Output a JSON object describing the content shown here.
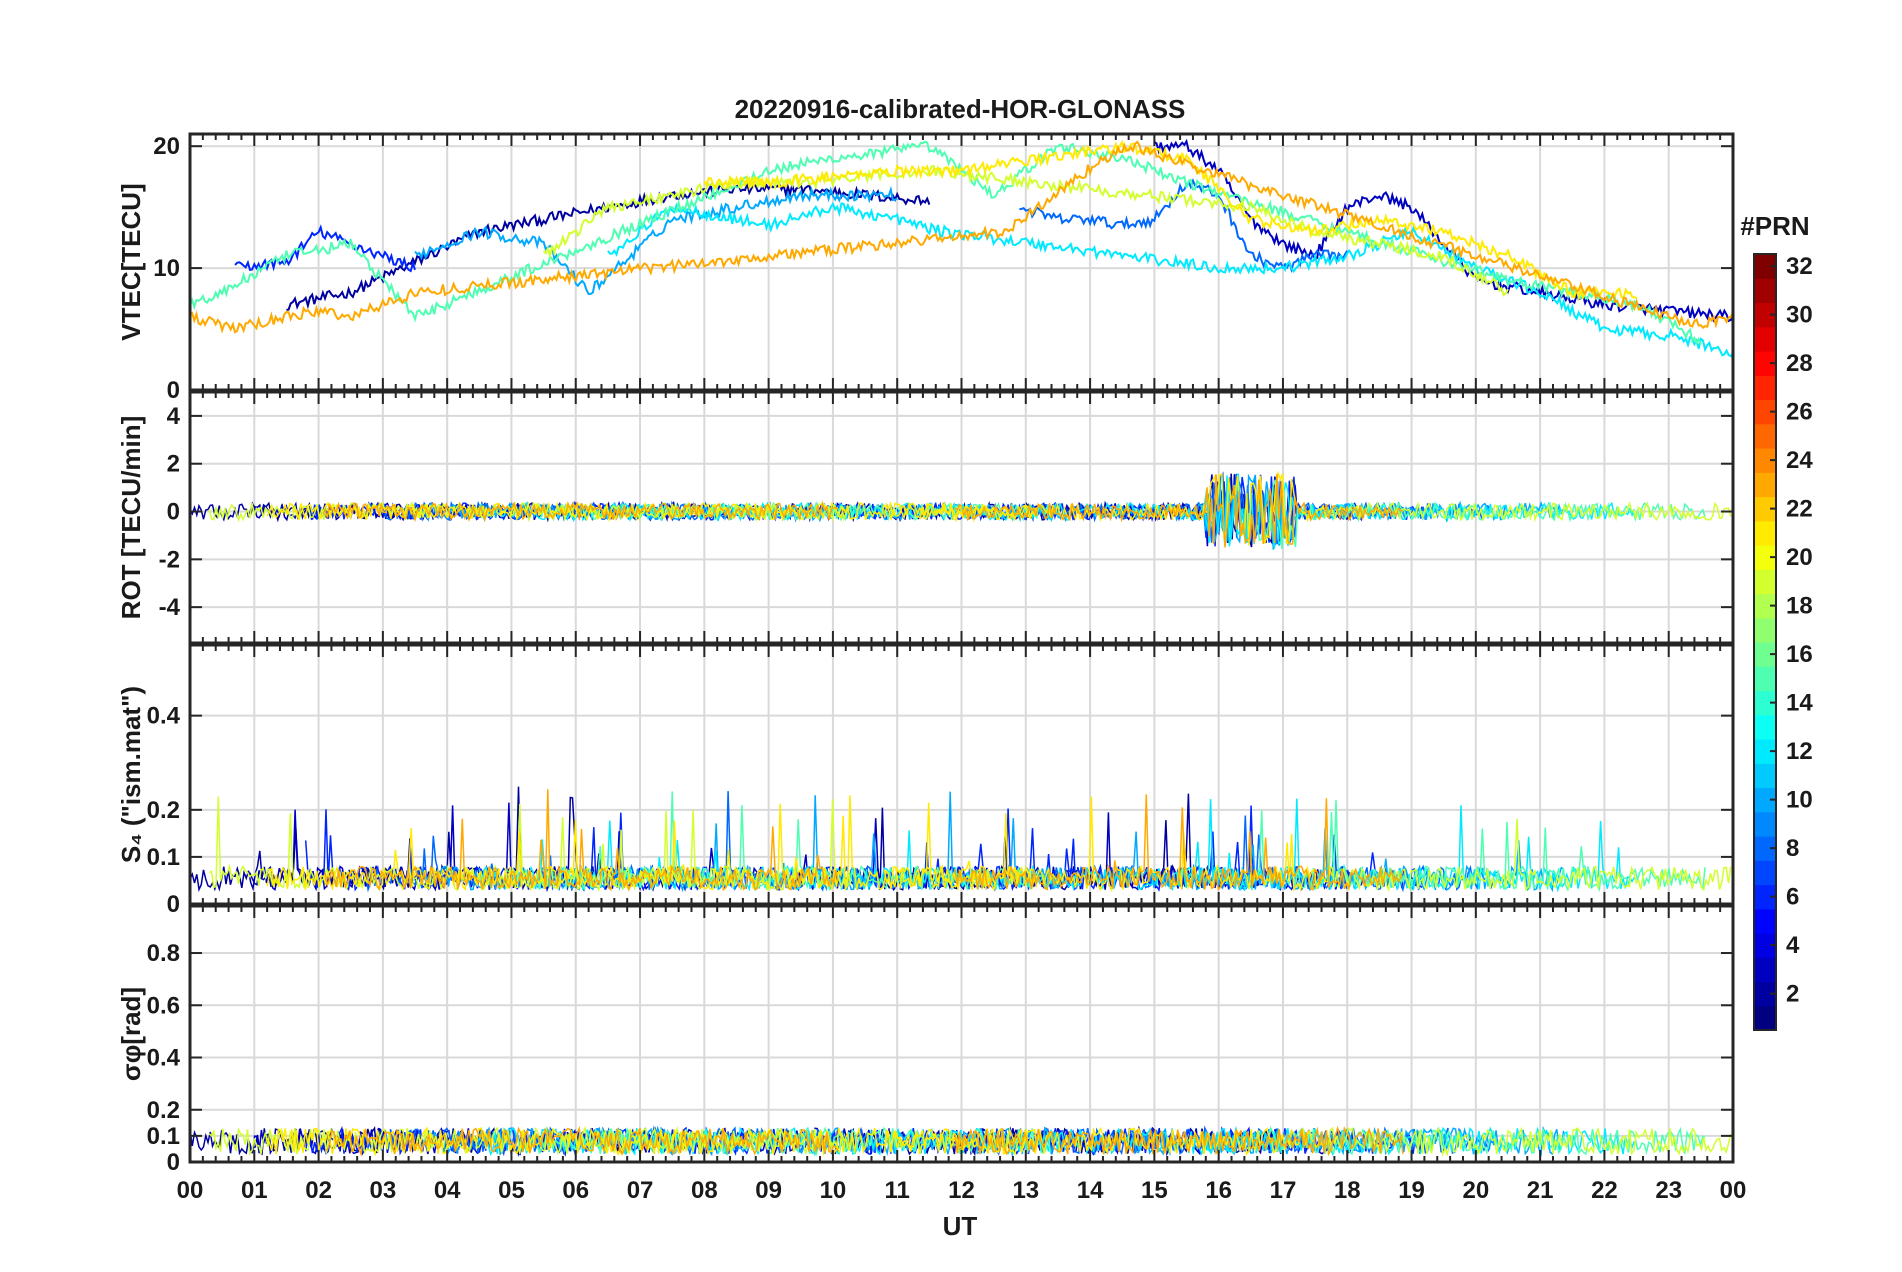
{
  "chart_data": {
    "type": "line",
    "title": "20220916-calibrated-HOR-GLONASS",
    "xlabel": "UT",
    "x_ticks": [
      "00",
      "01",
      "02",
      "03",
      "04",
      "05",
      "06",
      "07",
      "08",
      "09",
      "10",
      "11",
      "12",
      "13",
      "14",
      "15",
      "16",
      "17",
      "18",
      "19",
      "20",
      "21",
      "22",
      "23",
      "00"
    ],
    "xlim": [
      0,
      24
    ],
    "colorbar": {
      "title": "#PRN",
      "range": [
        1,
        32
      ],
      "tick_labels": [
        "2",
        "4",
        "6",
        "8",
        "10",
        "12",
        "14",
        "16",
        "18",
        "20",
        "22",
        "24",
        "26",
        "28",
        "30",
        "32"
      ],
      "colormap": "jet",
      "colors": [
        "#00007f",
        "#0000ff",
        "#007fff",
        "#00ffff",
        "#7fff7f",
        "#ffff00",
        "#ff7f00",
        "#ff0000",
        "#7f0000"
      ]
    },
    "panels": [
      {
        "id": "vtec",
        "ylabel": "VTEC[TECU]",
        "ylim": [
          0,
          21
        ],
        "y_ticks": [
          0,
          10,
          20
        ],
        "y_tick_labels": [
          "0",
          "10",
          "20"
        ],
        "series": [
          {
            "prn": 2,
            "x": [
              1.5,
              2.5,
              3.5,
              4.5,
              5.5,
              6.5,
              7.5,
              8.5,
              9.5,
              10.5,
              11.5
            ],
            "y": [
              7,
              8,
              10.5,
              13,
              14,
              15,
              16,
              16.5,
              16.5,
              16,
              15.5
            ]
          },
          {
            "prn": 3,
            "x": [
              15.0,
              15.5,
              16.0,
              16.5,
              17.0,
              17.5,
              18.0,
              18.5,
              19.0,
              19.5,
              20.0,
              21.0,
              22.0,
              23.0,
              24.0
            ],
            "y": [
              20,
              20,
              18,
              14,
              12,
              11,
              15,
              16,
              15,
              12,
              9,
              8,
              7,
              6.5,
              6
            ]
          },
          {
            "prn": 6,
            "x": [
              0.7,
              1.5,
              2.0,
              2.5,
              3.0,
              3.5
            ],
            "y": [
              10,
              10.5,
              13,
              12,
              11,
              10
            ]
          },
          {
            "prn": 8,
            "x": [
              12.9,
              13.5,
              14.0,
              14.5,
              15.0,
              15.5,
              16.0,
              16.5,
              17.0,
              17.5,
              18.0
            ],
            "y": [
              15,
              14,
              14,
              13.5,
              14,
              17,
              16,
              11,
              10,
              11,
              11
            ]
          },
          {
            "prn": 10,
            "x": [
              3.5,
              4.5,
              5.5,
              6.2,
              7.5,
              8.5,
              9.5,
              10.5,
              11.0
            ],
            "y": [
              11,
              13,
              12,
              8,
              14,
              15,
              16,
              16,
              16
            ]
          },
          {
            "prn": 12,
            "x": [
              6.5,
              7.5,
              8.5,
              9.0,
              10.0,
              11.0,
              11.7,
              16.0,
              17.0,
              18.0,
              19.0,
              20.0,
              21.0,
              22.0,
              23.0,
              24.0
            ],
            "y": [
              11,
              15,
              14,
              13.5,
              15,
              14,
              13,
              10,
              10,
              11,
              13,
              10,
              8,
              5,
              4.5,
              3
            ]
          },
          {
            "prn": 15,
            "x": [
              0,
              0.5,
              1.5,
              2.5,
              3.5,
              9.0,
              10.0,
              11.5,
              12.5,
              13.5,
              14.5,
              15.5,
              20.5,
              21.5,
              22.5,
              23.5
            ],
            "y": [
              7,
              8,
              11,
              12,
              6,
              18,
              19,
              20,
              16,
              20,
              19,
              17,
              9,
              8,
              7,
              4
            ]
          },
          {
            "prn": 19,
            "x": [
              5.5,
              6.5,
              7.5,
              8.5,
              9.5,
              10.5,
              11.5,
              16.5,
              17.5,
              18.5,
              19.5,
              20.5
            ],
            "y": [
              11,
              15,
              16,
              17,
              17,
              17.5,
              18,
              15,
              13,
              12,
              11,
              8
            ]
          },
          {
            "prn": 21,
            "x": [
              8.0,
              9.0,
              10.0,
              11.0,
              12.0,
              14.5,
              15.5,
              16.5,
              17.5,
              18.5,
              19.5,
              20.5,
              21.5,
              22.5
            ],
            "y": [
              17,
              17,
              17.5,
              18,
              18,
              20,
              19,
              14,
              13,
              14,
              13,
              11,
              8,
              8
            ]
          },
          {
            "prn": 23,
            "x": [
              0,
              0.7,
              1.5,
              2.0,
              2.5,
              3.0,
              3.5,
              12.7,
              13.2,
              13.7,
              14.2,
              14.7,
              15.2,
              23.0,
              23.5,
              24.0
            ],
            "y": [
              6,
              5,
              6,
              6.5,
              6,
              7,
              8,
              13,
              15,
              17,
              19,
              20,
              19,
              6,
              5.5,
              6
            ]
          }
        ]
      },
      {
        "id": "rot",
        "ylabel": "ROT [TECU/min]",
        "ylim": [
          -5.5,
          5
        ],
        "y_ticks": [
          -4,
          -2,
          0,
          2,
          4
        ],
        "y_tick_labels": [
          "-4",
          "-2",
          "0",
          "2",
          "4"
        ]
      },
      {
        "id": "s4",
        "ylabel": "S₄ (\"ism.mat\")",
        "ylim": [
          0,
          0.55
        ],
        "y_ticks": [
          0,
          0.1,
          0.2,
          0.4
        ],
        "y_tick_labels": [
          "0",
          "0.1",
          "0.2",
          "0.4"
        ]
      },
      {
        "id": "sigma_phi",
        "ylabel": "σφ[rad]",
        "ylim": [
          0,
          0.98
        ],
        "y_ticks": [
          0,
          0.1,
          0.2,
          0.4,
          0.6,
          0.8
        ],
        "y_tick_labels": [
          "0",
          "0.1",
          "0.2",
          "0.4",
          "0.6",
          "0.8"
        ]
      }
    ]
  }
}
